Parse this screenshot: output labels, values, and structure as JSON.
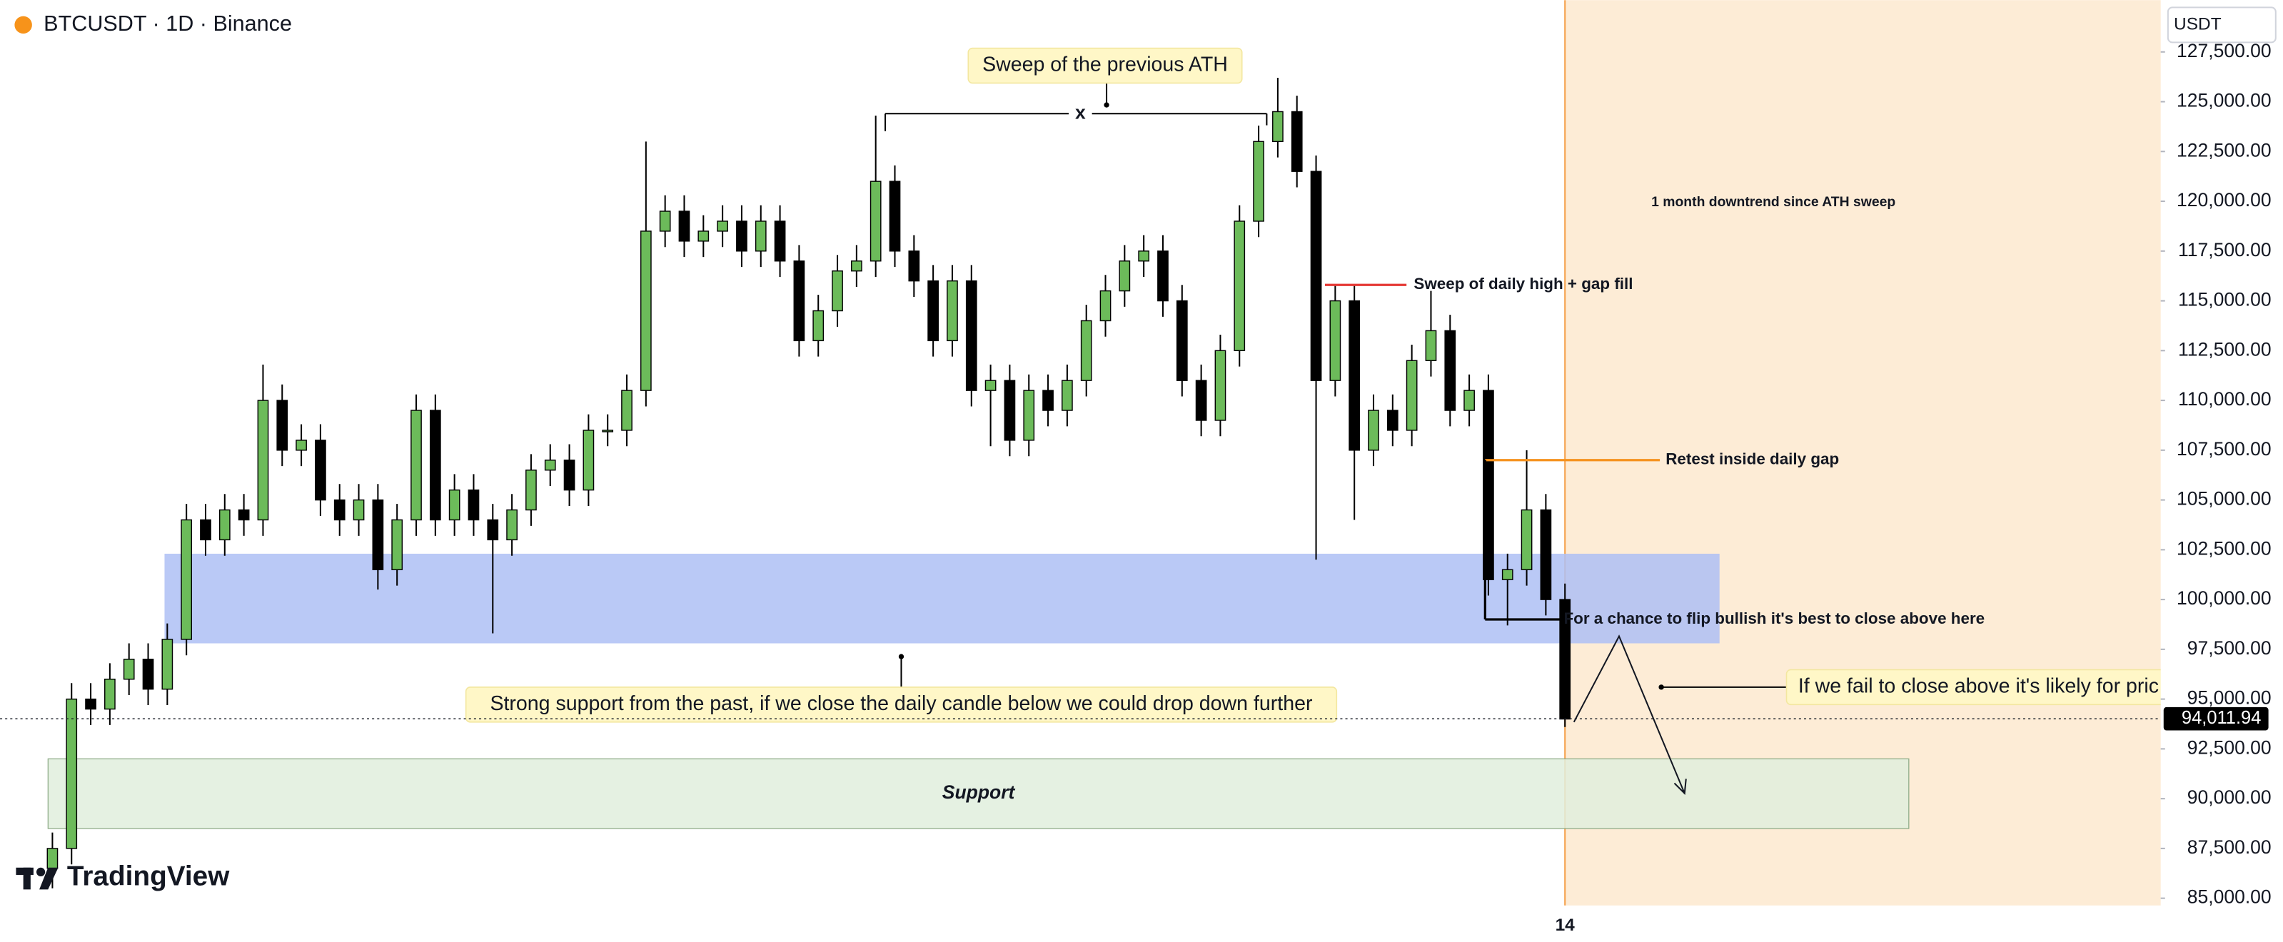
{
  "chart_data": {
    "type": "candlestick",
    "title": "BTCUSDT · 1D · Binance",
    "currency": "USDT",
    "brand": "TradingView",
    "categories": [
      null,
      null,
      null,
      null,
      null,
      null,
      null,
      null,
      null,
      null,
      null,
      null,
      null,
      null,
      null,
      null,
      null,
      null,
      null,
      null,
      null,
      null,
      null,
      null,
      null,
      null,
      null,
      null,
      null,
      null,
      null,
      null,
      null,
      null,
      null,
      null,
      null,
      null,
      null,
      null,
      null,
      null,
      null,
      null,
      null,
      null,
      null,
      null,
      null,
      null,
      null,
      null,
      null,
      null,
      null,
      null,
      null,
      null,
      null,
      null,
      null,
      null,
      null,
      null,
      null,
      null,
      null,
      null,
      null,
      null,
      null,
      null,
      null,
      null,
      null,
      null,
      null,
      null,
      null,
      "14"
    ],
    "open": [
      86500,
      87500,
      95000,
      94500,
      96000,
      97000,
      95500,
      98000,
      104000,
      103000,
      104500,
      104000,
      110000,
      107500,
      108000,
      105000,
      104000,
      105000,
      101500,
      104000,
      109500,
      104000,
      105500,
      104000,
      103000,
      104500,
      106500,
      107000,
      105500,
      108500,
      108500,
      110500,
      118500,
      119500,
      118000,
      118500,
      119000,
      117500,
      119000,
      117000,
      113000,
      114500,
      116500,
      117000,
      121000,
      117500,
      116000,
      113000,
      116000,
      110500,
      111000,
      108000,
      110500,
      109500,
      111000,
      114000,
      115500,
      117000,
      117500,
      115000,
      111000,
      109000,
      112500,
      119000,
      123000,
      124500,
      121500,
      111000,
      115000,
      107500,
      109500,
      108500,
      112000,
      113500,
      109500,
      110500,
      101000,
      101500,
      104500,
      100000
    ],
    "high": [
      88300,
      95800,
      95800,
      96800,
      97800,
      97800,
      98800,
      104800,
      104800,
      105300,
      105300,
      111800,
      110800,
      108800,
      108800,
      105800,
      105800,
      105800,
      104800,
      110300,
      110300,
      106300,
      106300,
      104800,
      105300,
      107300,
      107800,
      107800,
      109300,
      109300,
      111300,
      123000,
      120300,
      120300,
      119300,
      119800,
      119800,
      119800,
      119800,
      117800,
      115300,
      117300,
      117800,
      124300,
      121800,
      118300,
      116800,
      116800,
      116800,
      111800,
      111800,
      111300,
      111300,
      111800,
      114800,
      116300,
      117800,
      118300,
      118300,
      115800,
      111800,
      113300,
      119800,
      123800,
      126200,
      125300,
      122300,
      115800,
      115800,
      110300,
      110300,
      112800,
      115500,
      114300,
      111300,
      111300,
      102300,
      107500,
      105300,
      100800
    ],
    "low": [
      85500,
      86700,
      93700,
      93700,
      95200,
      94700,
      94700,
      97200,
      102200,
      102200,
      103200,
      103200,
      106700,
      106700,
      104200,
      103200,
      103200,
      100500,
      100700,
      103200,
      103200,
      103200,
      103200,
      98300,
      102200,
      103700,
      105700,
      104700,
      104700,
      107700,
      107700,
      109700,
      117700,
      117200,
      117200,
      117700,
      116700,
      116700,
      116200,
      112200,
      112200,
      113700,
      115700,
      116200,
      116700,
      115200,
      112200,
      112200,
      109700,
      107700,
      107200,
      107200,
      108700,
      108700,
      110200,
      113200,
      114700,
      116200,
      114200,
      110200,
      108200,
      108200,
      111700,
      118200,
      122200,
      120700,
      102000,
      110200,
      104000,
      106700,
      107700,
      107700,
      111200,
      108700,
      108700,
      100200,
      98700,
      100700,
      99200,
      93600
    ],
    "close": [
      87500,
      95000,
      94500,
      96000,
      97000,
      95500,
      98000,
      104000,
      103000,
      104500,
      104000,
      110000,
      107500,
      108000,
      105000,
      104000,
      105000,
      101500,
      104000,
      109500,
      104000,
      105500,
      104000,
      103000,
      104500,
      106500,
      107000,
      105500,
      108500,
      108500,
      110500,
      118500,
      119500,
      118000,
      118500,
      119000,
      117500,
      119000,
      117000,
      113000,
      114500,
      116500,
      117000,
      121000,
      117500,
      116000,
      113000,
      116000,
      110500,
      111000,
      108000,
      110500,
      109500,
      111000,
      114000,
      115500,
      117000,
      117500,
      115000,
      111000,
      109000,
      112500,
      119000,
      123000,
      124500,
      121500,
      111000,
      115000,
      107500,
      109500,
      108500,
      112000,
      113500,
      109500,
      110500,
      101000,
      101500,
      104500,
      100000,
      94000
    ],
    "up_color": "#6cbb5a",
    "down_color": "#000000",
    "ylim": [
      84600,
      130100
    ],
    "yticks": [
      {
        "value": 85000,
        "label": "85,000.00"
      },
      {
        "value": 87500,
        "label": "87,500.00"
      },
      {
        "value": 90000,
        "label": "90,000.00"
      },
      {
        "value": 92500,
        "label": "92,500.00"
      },
      {
        "value": 95000,
        "label": "95,000.00"
      },
      {
        "value": 97500,
        "label": "97,500.00"
      },
      {
        "value": 100000,
        "label": "100,000.00"
      },
      {
        "value": 102500,
        "label": "102,500.00"
      },
      {
        "value": 105000,
        "label": "105,000.00"
      },
      {
        "value": 107500,
        "label": "107,500.00"
      },
      {
        "value": 110000,
        "label": "110,000.00"
      },
      {
        "value": 112500,
        "label": "112,500.00"
      },
      {
        "value": 115000,
        "label": "115,000.00"
      },
      {
        "value": 117500,
        "label": "117,500.00"
      },
      {
        "value": 120000,
        "label": "120,000.00"
      },
      {
        "value": 122500,
        "label": "122,500.00"
      },
      {
        "value": 125000,
        "label": "125,000.00"
      },
      {
        "value": 127500,
        "label": "127,500.00"
      }
    ],
    "last_price": {
      "value": 94011.94,
      "label": "94,011.94"
    },
    "zones": [
      {
        "range": [
          97800,
          102300
        ],
        "color": "#aebff5"
      },
      {
        "range": [
          88500,
          92000
        ],
        "color": "#e0eedd",
        "label": "Support"
      }
    ],
    "levels": [
      {
        "value": 124400,
        "label": "x",
        "color": "#000000"
      },
      {
        "value": 115800,
        "label": "Sweep of daily high + gap fill",
        "color": "#e53935"
      },
      {
        "value": 107000,
        "label": "Retest inside daily gap",
        "color": "#f5921e"
      },
      {
        "value": 99000,
        "label": "For a chance to flip bullish it's best to close above here",
        "color": "#000000"
      }
    ],
    "annotations": {
      "ath_sweep": "Sweep of the previous ATH",
      "downtrend": "1 month downtrend since ATH sweep",
      "strong_support": "Strong support from the past, if we close the daily candle below we could drop down further",
      "fail_close": "If we fail to close above it's likely for pric"
    }
  }
}
